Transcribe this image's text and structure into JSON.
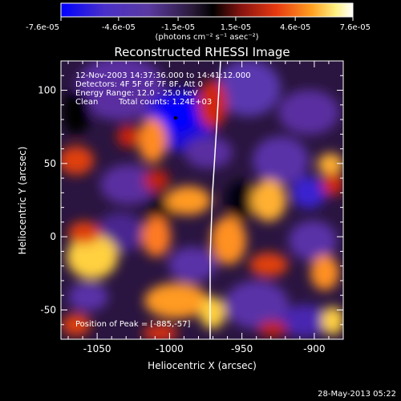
{
  "chart_data": {
    "type": "heatmap",
    "title": "Reconstructed RHESSI Image",
    "xlabel": "Heliocentric X (arcsec)",
    "ylabel": "Heliocentric Y (arcsec)",
    "xlim": [
      -1075,
      -880
    ],
    "ylim": [
      -70,
      120
    ],
    "x_ticks": [
      "-1050",
      "-1000",
      "-950",
      "-900"
    ],
    "x_tick_values": [
      -1050,
      -1000,
      -950,
      -900
    ],
    "y_ticks": [
      "-50",
      "0",
      "50",
      "100"
    ],
    "y_tick_values": [
      -50,
      0,
      50,
      100
    ],
    "colorbar": {
      "ticks": [
        "-7.6e-05",
        "-4.6e-05",
        "-1.5e-05",
        "1.5e-05",
        "4.6e-05",
        "7.6e-05"
      ],
      "tick_values": [
        -7.6e-05,
        -4.6e-05,
        -1.5e-05,
        1.5e-05,
        4.6e-05,
        7.6e-05
      ],
      "range": [
        -7.6e-05,
        7.6e-05
      ],
      "colors": [
        "#0000ff",
        "#5a3aa0",
        "#3a2a5a",
        "#000000",
        "#7a1010",
        "#e03a10",
        "#ffa020",
        "#fff080",
        "#ffffff"
      ]
    },
    "colorbar_unit": "(photons cm⁻² s⁻¹ asec⁻²)",
    "annotations": [
      "12-Nov-2003 14:37:36.000 to 14:41:12.000",
      "Detectors: 4F 5F 6F 7F 8F, Att 0",
      "Energy Range: 12.0 - 25.0 keV",
      "Clean",
      "Total counts: 1.24E+03",
      "Position of Peak = [-885,-57]"
    ],
    "peak_position": [
      -885,
      -57
    ],
    "footer_date": "28-May-2013 05:22"
  }
}
